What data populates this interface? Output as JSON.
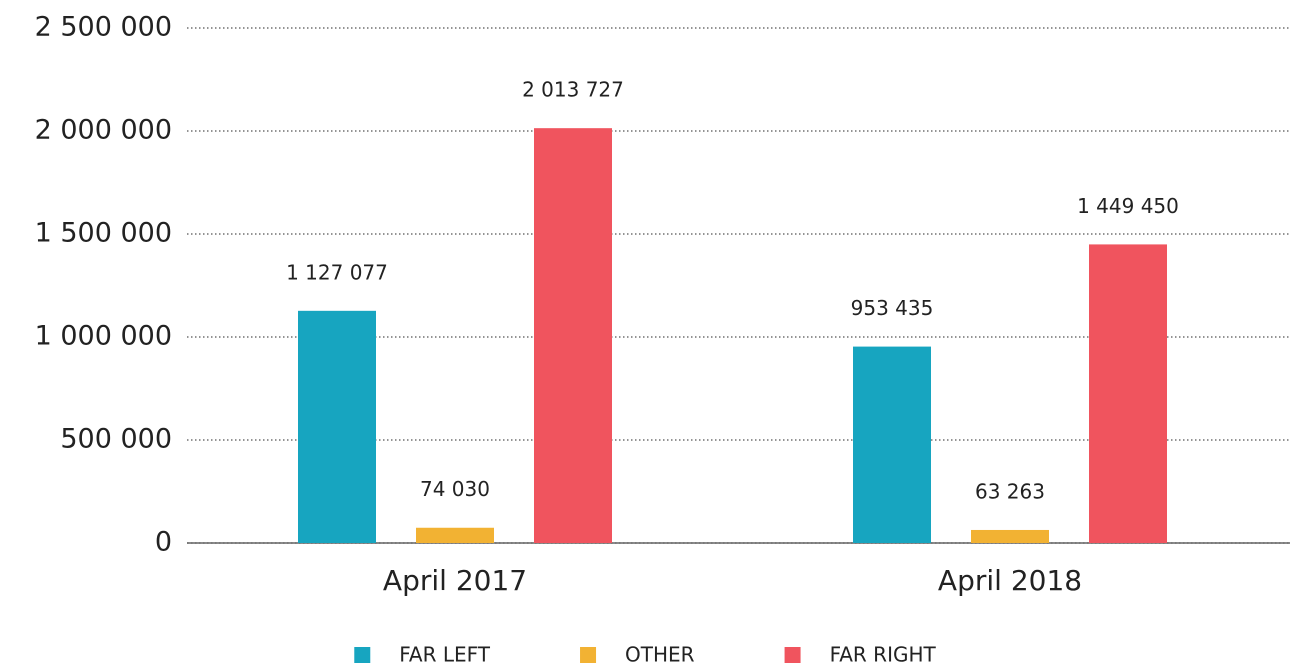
{
  "chart_data": {
    "type": "bar",
    "categories": [
      "April 2017",
      "April 2018"
    ],
    "series": [
      {
        "name": "FAR LEFT",
        "color": "#17a5c0",
        "values": [
          1127077,
          953435
        ],
        "value_labels": [
          "1 127 077",
          "953 435"
        ]
      },
      {
        "name": "OTHER",
        "color": "#f2b233",
        "values": [
          74030,
          63263
        ],
        "value_labels": [
          "74 030",
          "63 263"
        ]
      },
      {
        "name": "FAR RIGHT",
        "color": "#f0545e",
        "values": [
          2013727,
          1449450
        ],
        "value_labels": [
          "2 013 727",
          "1 449 450"
        ]
      }
    ],
    "ylim": [
      0,
      2500000
    ],
    "yticks": [
      0,
      {
        "value": 500000,
        "label": "500 000"
      },
      {
        "value": 1000000,
        "label": "1 000 000"
      },
      {
        "value": 1500000,
        "label": "1 500 000"
      },
      {
        "value": 2000000,
        "label": "2 000 000"
      },
      {
        "value": 2500000,
        "label": "2 500 000"
      }
    ],
    "grid": true,
    "legend": "bottom"
  }
}
